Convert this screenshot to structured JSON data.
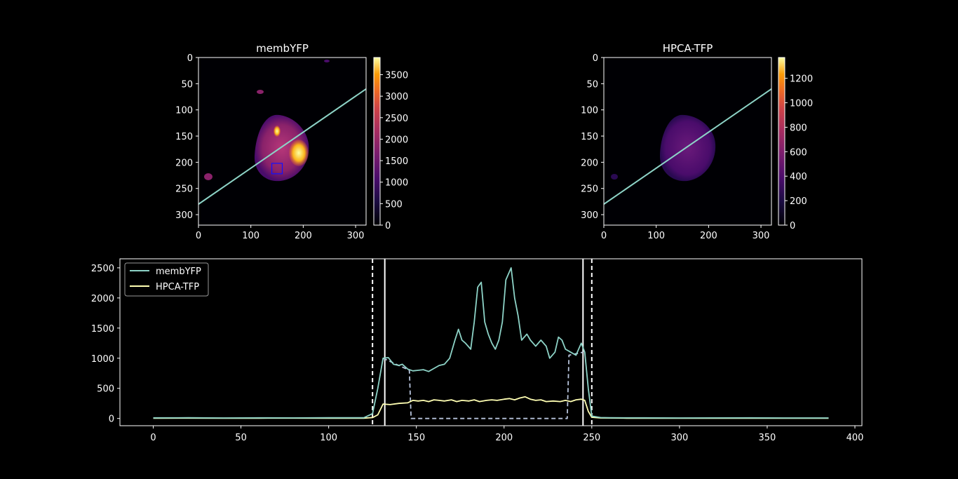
{
  "images": [
    {
      "title": "membYFP",
      "xticks": [
        0,
        100,
        200,
        300
      ],
      "yticks": [
        0,
        50,
        100,
        150,
        200,
        250,
        300
      ],
      "colorbar": {
        "ticks": [
          0,
          500,
          1000,
          1500,
          2000,
          2500,
          3000,
          3500
        ],
        "range": [
          0,
          3900
        ],
        "cmap": "inferno"
      },
      "line": {
        "color": "#8dd3c7",
        "start": [
          0,
          280
        ],
        "end": [
          320,
          60
        ]
      },
      "box": {
        "color": "#1010ff",
        "x": [
          140,
          160
        ],
        "y": [
          202,
          222
        ]
      }
    },
    {
      "title": "HPCA-TFP",
      "xticks": [
        0,
        100,
        200,
        300
      ],
      "yticks": [
        0,
        50,
        100,
        150,
        200,
        250,
        300
      ],
      "colorbar": {
        "ticks": [
          0,
          200,
          400,
          600,
          800,
          1000,
          1200
        ],
        "range": [
          0,
          1370
        ],
        "cmap": "inferno"
      },
      "line": {
        "color": "#8dd3c7",
        "start": [
          0,
          280
        ],
        "end": [
          320,
          60
        ]
      }
    }
  ],
  "chart_data": {
    "type": "line",
    "xlim": [
      -19,
      404
    ],
    "ylim": [
      -120,
      2650
    ],
    "xticks": [
      0,
      50,
      100,
      150,
      200,
      250,
      300,
      350,
      400
    ],
    "yticks": [
      0,
      500,
      1000,
      1500,
      2000,
      2500
    ],
    "legend": {
      "placement": "top-left"
    },
    "series": [
      {
        "name": "membYFP",
        "color": "#8dd3c7",
        "points": [
          [
            0,
            10
          ],
          [
            20,
            12
          ],
          [
            40,
            8
          ],
          [
            60,
            10
          ],
          [
            80,
            9
          ],
          [
            100,
            11
          ],
          [
            120,
            12
          ],
          [
            125,
            80
          ],
          [
            128,
            500
          ],
          [
            131,
            1000
          ],
          [
            134,
            1010
          ],
          [
            137,
            900
          ],
          [
            140,
            880
          ],
          [
            142,
            900
          ],
          [
            145,
            820
          ],
          [
            148,
            790
          ],
          [
            151,
            800
          ],
          [
            154,
            810
          ],
          [
            157,
            780
          ],
          [
            160,
            830
          ],
          [
            163,
            880
          ],
          [
            166,
            900
          ],
          [
            169,
            1000
          ],
          [
            172,
            1300
          ],
          [
            174,
            1480
          ],
          [
            176,
            1300
          ],
          [
            178,
            1250
          ],
          [
            181,
            1150
          ],
          [
            183,
            1600
          ],
          [
            185,
            2180
          ],
          [
            187,
            2260
          ],
          [
            189,
            1600
          ],
          [
            191,
            1400
          ],
          [
            193,
            1250
          ],
          [
            195,
            1150
          ],
          [
            197,
            1300
          ],
          [
            199,
            1600
          ],
          [
            201,
            2300
          ],
          [
            204,
            2500
          ],
          [
            206,
            2000
          ],
          [
            208,
            1700
          ],
          [
            210,
            1300
          ],
          [
            213,
            1400
          ],
          [
            215,
            1300
          ],
          [
            218,
            1200
          ],
          [
            221,
            1300
          ],
          [
            224,
            1200
          ],
          [
            226,
            1000
          ],
          [
            229,
            1100
          ],
          [
            231,
            1350
          ],
          [
            233,
            1300
          ],
          [
            235,
            1150
          ],
          [
            238,
            1100
          ],
          [
            241,
            1050
          ],
          [
            244,
            1250
          ],
          [
            246,
            1100
          ],
          [
            248,
            500
          ],
          [
            250,
            40
          ],
          [
            255,
            15
          ],
          [
            260,
            12
          ],
          [
            280,
            10
          ],
          [
            300,
            8
          ],
          [
            320,
            9
          ],
          [
            340,
            10
          ],
          [
            360,
            8
          ],
          [
            385,
            8
          ]
        ]
      },
      {
        "name": "HPCA-TFP",
        "color": "#ffffb3",
        "points": [
          [
            0,
            5
          ],
          [
            20,
            6
          ],
          [
            40,
            5
          ],
          [
            60,
            5
          ],
          [
            80,
            6
          ],
          [
            100,
            5
          ],
          [
            120,
            5
          ],
          [
            125,
            15
          ],
          [
            128,
            60
          ],
          [
            131,
            240
          ],
          [
            135,
            230
          ],
          [
            140,
            250
          ],
          [
            145,
            260
          ],
          [
            148,
            300
          ],
          [
            151,
            290
          ],
          [
            154,
            300
          ],
          [
            157,
            280
          ],
          [
            160,
            310
          ],
          [
            163,
            300
          ],
          [
            166,
            290
          ],
          [
            170,
            310
          ],
          [
            173,
            280
          ],
          [
            176,
            300
          ],
          [
            180,
            290
          ],
          [
            183,
            310
          ],
          [
            186,
            280
          ],
          [
            190,
            300
          ],
          [
            193,
            310
          ],
          [
            196,
            300
          ],
          [
            200,
            320
          ],
          [
            203,
            330
          ],
          [
            206,
            310
          ],
          [
            209,
            340
          ],
          [
            212,
            360
          ],
          [
            215,
            320
          ],
          [
            218,
            300
          ],
          [
            221,
            310
          ],
          [
            224,
            280
          ],
          [
            228,
            290
          ],
          [
            232,
            280
          ],
          [
            235,
            300
          ],
          [
            238,
            280
          ],
          [
            241,
            310
          ],
          [
            244,
            320
          ],
          [
            246,
            300
          ],
          [
            248,
            120
          ],
          [
            250,
            20
          ],
          [
            255,
            8
          ],
          [
            270,
            5
          ],
          [
            300,
            5
          ],
          [
            330,
            5
          ],
          [
            360,
            5
          ],
          [
            385,
            5
          ]
        ]
      },
      {
        "name": "",
        "color": "#b7c4dc",
        "dashed": true,
        "points": [
          [
            131,
            1000
          ],
          [
            146,
            800
          ],
          [
            147,
            0
          ],
          [
            236,
            0
          ],
          [
            237,
            1050
          ],
          [
            245,
            1100
          ]
        ]
      }
    ],
    "vlines": [
      {
        "x": 125,
        "dashed": true
      },
      {
        "x": 132,
        "dashed": false
      },
      {
        "x": 245,
        "dashed": false
      },
      {
        "x": 250,
        "dashed": true
      }
    ]
  }
}
